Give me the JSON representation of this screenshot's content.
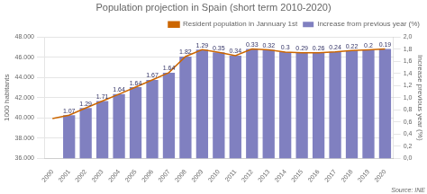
{
  "chart_data": {
    "type": "bar",
    "title": "Population projection in Spain (short term 2010-2020)",
    "categories": [
      "2000",
      "2001",
      "2002",
      "2003",
      "2004",
      "2005",
      "2006",
      "2007",
      "2008",
      "2009",
      "2010",
      "2011",
      "2012",
      "2013",
      "2014",
      "2015",
      "2016",
      "2017",
      "2018",
      "2019",
      "2020"
    ],
    "series": [
      {
        "name": "Increase from previous year (%)",
        "type": "bar",
        "color": "#8080C0",
        "values": [
          null,
          40268,
          40977,
          41664,
          42345,
          43038,
          43758,
          44475,
          46063,
          46745,
          46486,
          46152,
          46818,
          46727,
          46512,
          46449,
          46440,
          46527,
          46659,
          46736,
          46825
        ],
        "pct_labels": [
          null,
          1.07,
          1.29,
          1.71,
          1.64,
          1.64,
          1.67,
          1.64,
          1.82,
          1.29,
          0.35,
          0.34,
          0.33,
          0.32,
          0.3,
          0.29,
          0.26,
          0.24,
          0.22,
          0.2,
          0.19
        ]
      },
      {
        "name": "Resident population in Jannuary 1st",
        "type": "line",
        "color": "#CC6600",
        "values": [
          39929,
          40268,
          40977,
          41664,
          42345,
          43038,
          43758,
          44475,
          46063,
          46745,
          46486,
          46152,
          46818,
          46727,
          46512,
          46449,
          46440,
          46527,
          46659,
          46736,
          46825
        ]
      }
    ],
    "ylabel": "1000 habitants",
    "y2label": "Increase previous year (%)",
    "ylim": [
      36000,
      48000
    ],
    "yticks": [
      {
        "value": 36000,
        "label": "36.000"
      },
      {
        "value": 38000,
        "label": "38.000"
      },
      {
        "value": 40000,
        "label": "40.000"
      },
      {
        "value": 42000,
        "label": "42.000"
      },
      {
        "value": 44000,
        "label": "44.000"
      },
      {
        "value": 46000,
        "label": "46.000"
      },
      {
        "value": 48000,
        "label": "48.000"
      }
    ],
    "y2lim": [
      0.0,
      2.0
    ],
    "y2ticks": [
      {
        "value": 0.0,
        "label": "0,0"
      },
      {
        "value": 0.2,
        "label": "0,2"
      },
      {
        "value": 0.4,
        "label": "0,4"
      },
      {
        "value": 0.6,
        "label": "0,6"
      },
      {
        "value": 0.8,
        "label": "0,8"
      },
      {
        "value": 1.0,
        "label": "1,0"
      },
      {
        "value": 1.2,
        "label": "1,2"
      },
      {
        "value": 1.4,
        "label": "1,4"
      },
      {
        "value": 1.6,
        "label": "1,6"
      },
      {
        "value": 1.8,
        "label": "1,8"
      },
      {
        "value": 2.0,
        "label": "2,0"
      }
    ],
    "grid": true,
    "legend": "upper right",
    "annotations": [
      "Source: INE"
    ]
  }
}
